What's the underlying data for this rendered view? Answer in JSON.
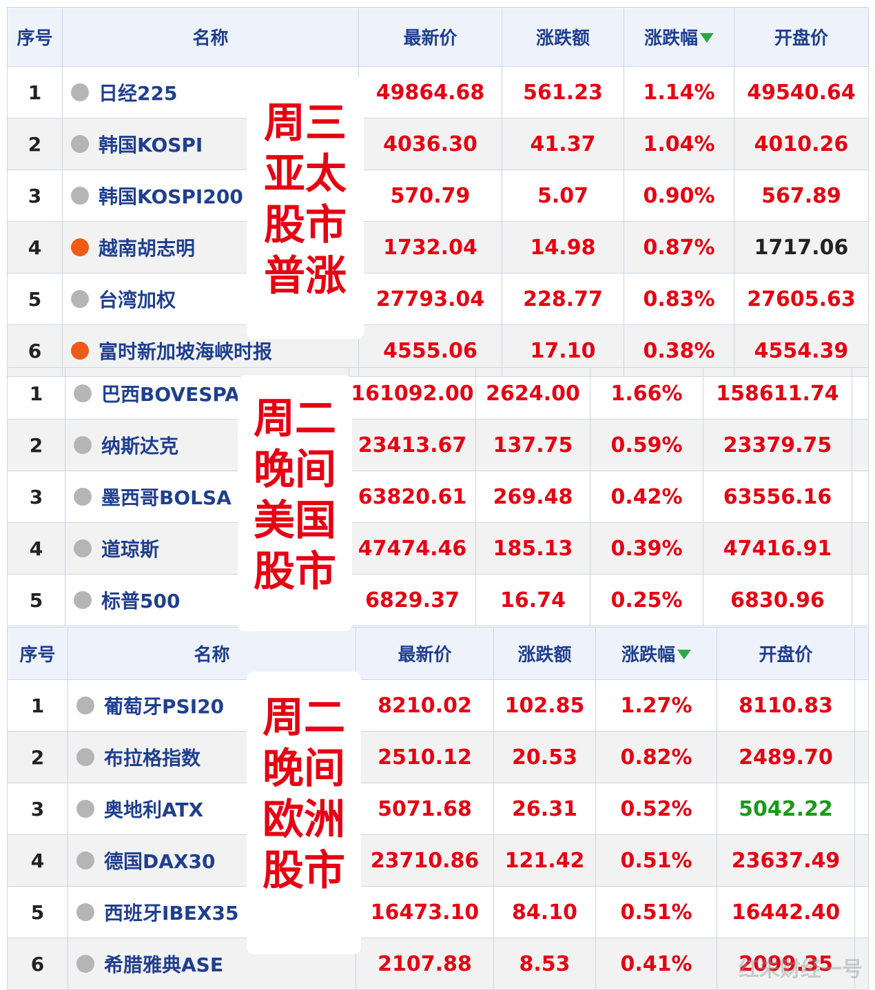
{
  "headers": {
    "index": "序号",
    "name": "名称",
    "price": "最新价",
    "change": "涨跌额",
    "change_pct": "涨跌幅",
    "open": "开盘价"
  },
  "asia": {
    "label": [
      "周三",
      "亚太",
      "股市",
      "普涨"
    ],
    "rows": [
      {
        "index": "1",
        "name": "日经225",
        "price": "49864.68",
        "change": "561.23",
        "pct": "1.14%",
        "open": "49540.64",
        "dot": "gray",
        "open_color": "red"
      },
      {
        "index": "2",
        "name": "韩国KOSPI",
        "price": "4036.30",
        "change": "41.37",
        "pct": "1.04%",
        "open": "4010.26",
        "dot": "gray",
        "open_color": "red"
      },
      {
        "index": "3",
        "name": "韩国KOSPI200",
        "price": "570.79",
        "change": "5.07",
        "pct": "0.90%",
        "open": "567.89",
        "dot": "gray",
        "open_color": "red"
      },
      {
        "index": "4",
        "name": "越南胡志明",
        "price": "1732.04",
        "change": "14.98",
        "pct": "0.87%",
        "open": "1717.06",
        "dot": "orange",
        "open_color": "black"
      },
      {
        "index": "5",
        "name": "台湾加权",
        "price": "27793.04",
        "change": "228.77",
        "pct": "0.83%",
        "open": "27605.63",
        "dot": "gray",
        "open_color": "red"
      },
      {
        "index": "6",
        "name": "富时新加坡海峡时报",
        "price": "4555.06",
        "change": "17.10",
        "pct": "0.38%",
        "open": "4554.39",
        "dot": "orange",
        "open_color": "red"
      }
    ]
  },
  "us": {
    "label": [
      "周二",
      "晚间",
      "美国",
      "股市"
    ],
    "rows": [
      {
        "index": "1",
        "name": "巴西BOVESPA",
        "price": "161092.00",
        "change": "2624.00",
        "pct": "1.66%",
        "open": "158611.74",
        "dot": "gray",
        "open_color": "red"
      },
      {
        "index": "2",
        "name": "纳斯达克",
        "price": "23413.67",
        "change": "137.75",
        "pct": "0.59%",
        "open": "23379.75",
        "dot": "gray",
        "open_color": "red"
      },
      {
        "index": "3",
        "name": "墨西哥BOLSA",
        "price": "63820.61",
        "change": "269.48",
        "pct": "0.42%",
        "open": "63556.16",
        "dot": "gray",
        "open_color": "red"
      },
      {
        "index": "4",
        "name": "道琼斯",
        "price": "47474.46",
        "change": "185.13",
        "pct": "0.39%",
        "open": "47416.91",
        "dot": "gray",
        "open_color": "red"
      },
      {
        "index": "5",
        "name": "标普500",
        "price": "6829.37",
        "change": "16.74",
        "pct": "0.25%",
        "open": "6830.96",
        "dot": "gray",
        "open_color": "red"
      }
    ]
  },
  "europe": {
    "label": [
      "周二",
      "晚间",
      "欧洲",
      "股市"
    ],
    "rows": [
      {
        "index": "1",
        "name": "葡萄牙PSI20",
        "price": "8210.02",
        "change": "102.85",
        "pct": "1.27%",
        "open": "8110.83",
        "dot": "gray",
        "open_color": "red"
      },
      {
        "index": "2",
        "name": "布拉格指数",
        "price": "2510.12",
        "change": "20.53",
        "pct": "0.82%",
        "open": "2489.70",
        "dot": "gray",
        "open_color": "red"
      },
      {
        "index": "3",
        "name": "奥地利ATX",
        "price": "5071.68",
        "change": "26.31",
        "pct": "0.52%",
        "open": "5042.22",
        "dot": "gray",
        "open_color": "green"
      },
      {
        "index": "4",
        "name": "德国DAX30",
        "price": "23710.86",
        "change": "121.42",
        "pct": "0.51%",
        "open": "23637.49",
        "dot": "gray",
        "open_color": "red"
      },
      {
        "index": "5",
        "name": "西班牙IBEX35",
        "price": "16473.10",
        "change": "84.10",
        "pct": "0.51%",
        "open": "16442.40",
        "dot": "gray",
        "open_color": "red"
      },
      {
        "index": "6",
        "name": "希腊雅典ASE",
        "price": "2107.88",
        "change": "8.53",
        "pct": "0.41%",
        "open": "2099.35",
        "dot": "gray",
        "open_color": "red"
      }
    ]
  },
  "watermark": "红朱财经一号",
  "colors": {
    "up": "#e60012",
    "header_text": "#1f3f8f",
    "green": "#1a9a1a",
    "dot_gray": "#b5b5b5",
    "dot_orange": "#ee5a17"
  }
}
